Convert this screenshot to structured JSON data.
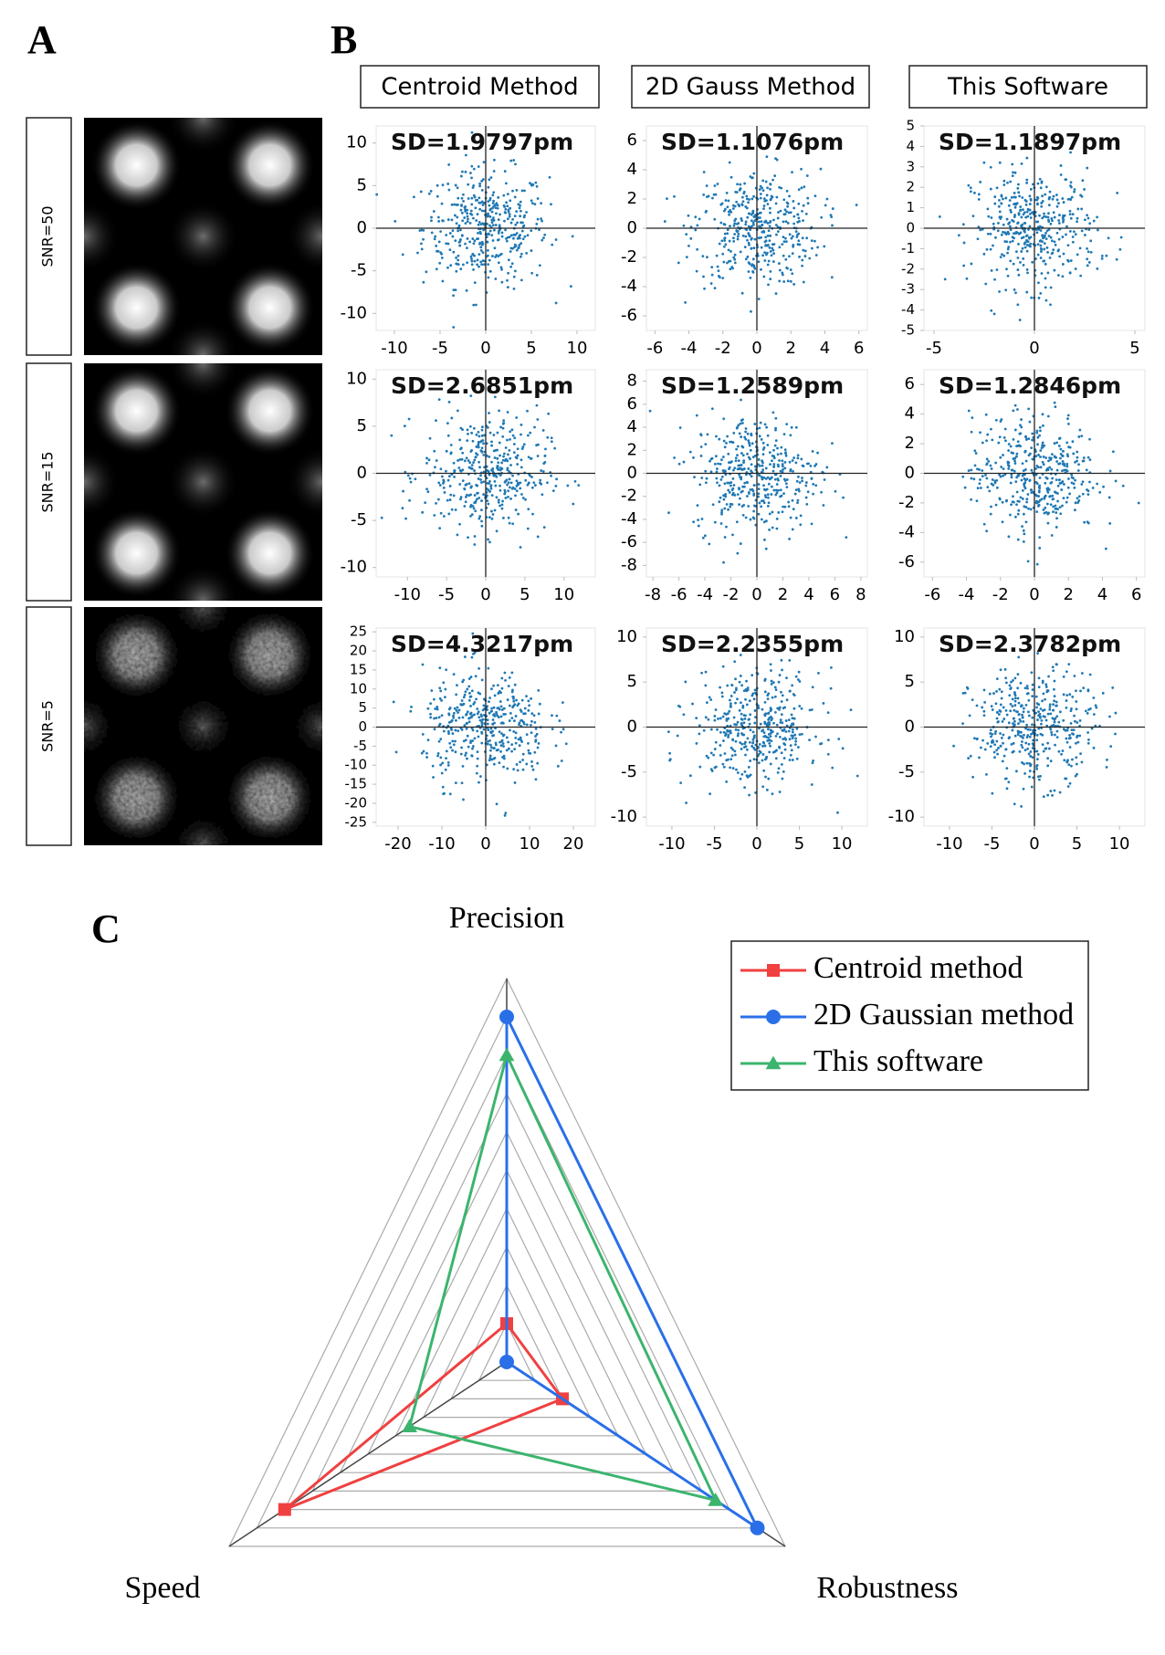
{
  "panel_labels": [
    "A",
    "B",
    "C"
  ],
  "row_labels": [
    "SNR=50",
    "SNR=15",
    "SNR=5"
  ],
  "column_titles": [
    "Centroid Method",
    "2D Gauss Method",
    "This Software"
  ],
  "chart_data": [
    {
      "type": "scatter",
      "title": "SD=1.9797pm",
      "xlim": [
        -12,
        12
      ],
      "ylim": [
        -12,
        12
      ],
      "xticks": [
        -10,
        -5,
        0,
        5,
        10
      ],
      "yticks": [
        -10,
        -5,
        0,
        5,
        10
      ]
    },
    {
      "type": "scatter",
      "title": "SD=1.1076pm",
      "xlim": [
        -6.5,
        6.5
      ],
      "ylim": [
        -7,
        7
      ],
      "xticks": [
        -6,
        -4,
        -2,
        0,
        2,
        4,
        6
      ],
      "yticks": [
        -6,
        -4,
        -2,
        0,
        2,
        4,
        6
      ]
    },
    {
      "type": "scatter",
      "title": "SD=1.1897pm",
      "xlim": [
        -5.5,
        5.5
      ],
      "ylim": [
        -5,
        5
      ],
      "xticks": [
        -5,
        0,
        5
      ],
      "yticks": [
        -5,
        -4,
        -3,
        -2,
        -1,
        0,
        1,
        2,
        3,
        4,
        5
      ]
    },
    {
      "type": "scatter",
      "title": "SD=2.6851pm",
      "xlim": [
        -14,
        14
      ],
      "ylim": [
        -11,
        11
      ],
      "xticks": [
        -10,
        -5,
        0,
        5,
        10
      ],
      "yticks": [
        -10,
        -5,
        0,
        5,
        10
      ]
    },
    {
      "type": "scatter",
      "title": "SD=1.2589pm",
      "xlim": [
        -8.5,
        8.5
      ],
      "ylim": [
        -9,
        9
      ],
      "xticks": [
        -8,
        -6,
        -4,
        -2,
        0,
        2,
        4,
        6,
        8
      ],
      "yticks": [
        -8,
        -6,
        -4,
        -2,
        0,
        2,
        4,
        6,
        8
      ]
    },
    {
      "type": "scatter",
      "title": "SD=1.2846pm",
      "xlim": [
        -6.5,
        6.5
      ],
      "ylim": [
        -7,
        7
      ],
      "xticks": [
        -6,
        -4,
        -2,
        0,
        2,
        4,
        6
      ],
      "yticks": [
        -6,
        -4,
        -2,
        0,
        2,
        4,
        6
      ]
    },
    {
      "type": "scatter",
      "title": "SD=4.3217pm",
      "xlim": [
        -25,
        25
      ],
      "ylim": [
        -26,
        26
      ],
      "xticks": [
        -20,
        -10,
        0,
        10,
        20
      ],
      "yticks": [
        -25,
        -20,
        -15,
        -10,
        -5,
        0,
        5,
        10,
        15,
        20,
        25
      ]
    },
    {
      "type": "scatter",
      "title": "SD=2.2355pm",
      "xlim": [
        -13,
        13
      ],
      "ylim": [
        -11,
        11
      ],
      "xticks": [
        -10,
        -5,
        0,
        5,
        10
      ],
      "yticks": [
        -10,
        -5,
        0,
        5,
        10
      ]
    },
    {
      "type": "scatter",
      "title": "SD=2.3782pm",
      "xlim": [
        -13,
        13
      ],
      "ylim": [
        -11,
        11
      ],
      "xticks": [
        -10,
        -5,
        0,
        5,
        10
      ],
      "yticks": [
        -10,
        -5,
        0,
        5,
        10
      ]
    },
    {
      "type": "radar",
      "axes": [
        "Precision",
        "Speed",
        "Robustness"
      ],
      "rlim": [
        0,
        10
      ],
      "rticks": [
        1,
        2,
        3,
        4,
        5,
        6,
        7,
        8,
        9,
        10
      ],
      "series": [
        {
          "name": "Centroid method",
          "color": "#f04040",
          "marker": "square",
          "values": [
            1,
            8,
            2
          ]
        },
        {
          "name": "2D Gaussian method",
          "color": "#2a6fe8",
          "marker": "circle",
          "values": [
            9,
            0,
            9
          ]
        },
        {
          "name": "This software",
          "color": "#3cb46e",
          "marker": "triangle",
          "values": [
            8,
            3.5,
            7.5
          ]
        }
      ]
    }
  ]
}
